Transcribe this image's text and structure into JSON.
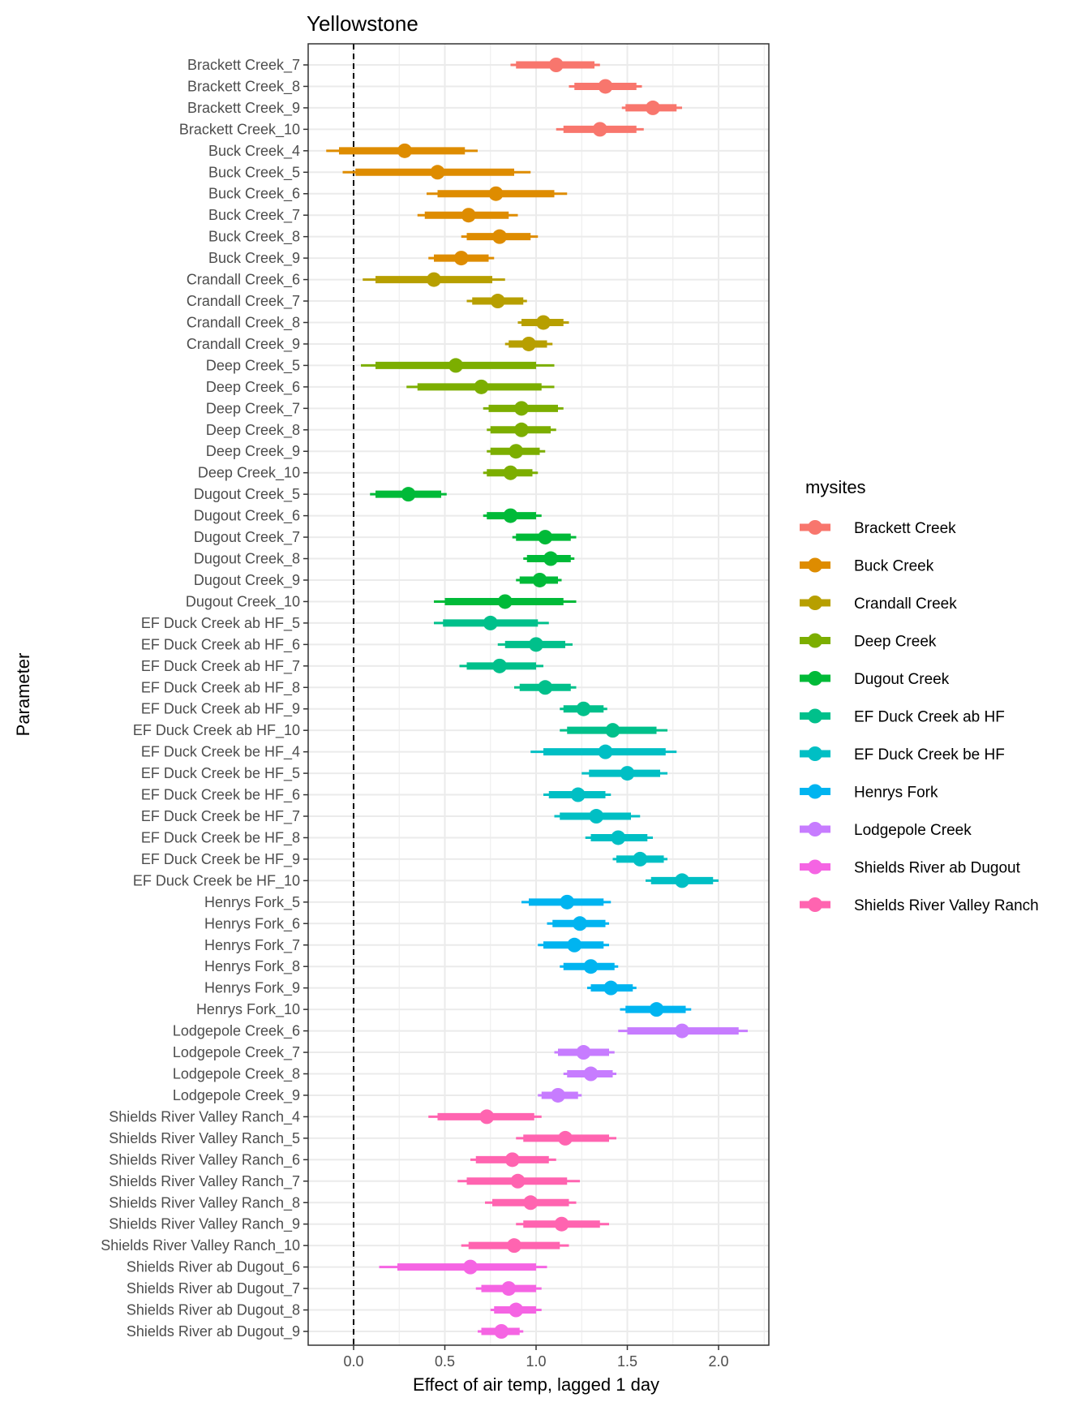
{
  "chart_data": {
    "type": "interval",
    "title": "Yellowstone",
    "xlabel": "Effect of air temp, lagged 1 day",
    "ylabel": "Parameter",
    "xlim": [
      -0.25,
      2.28
    ],
    "x_ticks": [
      0.0,
      0.5,
      1.0,
      1.5,
      2.0
    ],
    "x_tick_labels": [
      "0.0",
      "0.5",
      "1.0",
      "1.5",
      "2.0"
    ],
    "reference_line": 0.0,
    "grid": true,
    "legend": {
      "title": "mysites",
      "position": "right",
      "entries": [
        {
          "name": "Brackett Creek",
          "color": "#F8766D"
        },
        {
          "name": "Buck Creek",
          "color": "#DE8C00"
        },
        {
          "name": "Crandall Creek",
          "color": "#B79F00"
        },
        {
          "name": "Deep Creek",
          "color": "#7CAE00"
        },
        {
          "name": "Dugout Creek",
          "color": "#00BA38"
        },
        {
          "name": "EF Duck Creek ab HF",
          "color": "#00C08B"
        },
        {
          "name": "EF Duck Creek be HF",
          "color": "#00BFC4"
        },
        {
          "name": "Henrys Fork",
          "color": "#00B4F0"
        },
        {
          "name": "Lodgepole Creek",
          "color": "#C77CFF"
        },
        {
          "name": "Shields River ab Dugout",
          "color": "#F564E3"
        },
        {
          "name": "Shields River Valley Ranch",
          "color": "#FF64B0"
        }
      ]
    },
    "rows": [
      {
        "label": "Brackett Creek_7",
        "site": 0,
        "est": 1.11,
        "inner": [
          0.89,
          1.32
        ],
        "outer": [
          0.86,
          1.35
        ]
      },
      {
        "label": "Brackett Creek_8",
        "site": 0,
        "est": 1.38,
        "inner": [
          1.21,
          1.55
        ],
        "outer": [
          1.18,
          1.58
        ]
      },
      {
        "label": "Brackett Creek_9",
        "site": 0,
        "est": 1.64,
        "inner": [
          1.49,
          1.77
        ],
        "outer": [
          1.47,
          1.8
        ]
      },
      {
        "label": "Brackett Creek_10",
        "site": 0,
        "est": 1.35,
        "inner": [
          1.15,
          1.55
        ],
        "outer": [
          1.11,
          1.59
        ]
      },
      {
        "label": "Buck Creek_4",
        "site": 1,
        "est": 0.28,
        "inner": [
          -0.08,
          0.61
        ],
        "outer": [
          -0.15,
          0.68
        ]
      },
      {
        "label": "Buck Creek_5",
        "site": 1,
        "est": 0.46,
        "inner": [
          0.01,
          0.88
        ],
        "outer": [
          -0.06,
          0.97
        ]
      },
      {
        "label": "Buck Creek_6",
        "site": 1,
        "est": 0.78,
        "inner": [
          0.46,
          1.1
        ],
        "outer": [
          0.4,
          1.17
        ]
      },
      {
        "label": "Buck Creek_7",
        "site": 1,
        "est": 0.63,
        "inner": [
          0.39,
          0.85
        ],
        "outer": [
          0.35,
          0.9
        ]
      },
      {
        "label": "Buck Creek_8",
        "site": 1,
        "est": 0.8,
        "inner": [
          0.62,
          0.97
        ],
        "outer": [
          0.59,
          1.01
        ]
      },
      {
        "label": "Buck Creek_9",
        "site": 1,
        "est": 0.59,
        "inner": [
          0.44,
          0.74
        ],
        "outer": [
          0.41,
          0.77
        ]
      },
      {
        "label": "Crandall Creek_6",
        "site": 2,
        "est": 0.44,
        "inner": [
          0.12,
          0.76
        ],
        "outer": [
          0.05,
          0.83
        ]
      },
      {
        "label": "Crandall Creek_7",
        "site": 2,
        "est": 0.79,
        "inner": [
          0.65,
          0.93
        ],
        "outer": [
          0.62,
          0.95
        ]
      },
      {
        "label": "Crandall Creek_8",
        "site": 2,
        "est": 1.04,
        "inner": [
          0.92,
          1.15
        ],
        "outer": [
          0.9,
          1.18
        ]
      },
      {
        "label": "Crandall Creek_9",
        "site": 2,
        "est": 0.96,
        "inner": [
          0.85,
          1.06
        ],
        "outer": [
          0.83,
          1.09
        ]
      },
      {
        "label": "Deep Creek_5",
        "site": 3,
        "est": 0.56,
        "inner": [
          0.12,
          1.0
        ],
        "outer": [
          0.04,
          1.1
        ]
      },
      {
        "label": "Deep Creek_6",
        "site": 3,
        "est": 0.7,
        "inner": [
          0.35,
          1.03
        ],
        "outer": [
          0.29,
          1.1
        ]
      },
      {
        "label": "Deep Creek_7",
        "site": 3,
        "est": 0.92,
        "inner": [
          0.74,
          1.12
        ],
        "outer": [
          0.71,
          1.15
        ]
      },
      {
        "label": "Deep Creek_8",
        "site": 3,
        "est": 0.92,
        "inner": [
          0.75,
          1.08
        ],
        "outer": [
          0.73,
          1.11
        ]
      },
      {
        "label": "Deep Creek_9",
        "site": 3,
        "est": 0.89,
        "inner": [
          0.75,
          1.02
        ],
        "outer": [
          0.73,
          1.05
        ]
      },
      {
        "label": "Deep Creek_10",
        "site": 3,
        "est": 0.86,
        "inner": [
          0.73,
          0.98
        ],
        "outer": [
          0.71,
          1.01
        ]
      },
      {
        "label": "Dugout Creek_5",
        "site": 4,
        "est": 0.3,
        "inner": [
          0.12,
          0.48
        ],
        "outer": [
          0.09,
          0.51
        ]
      },
      {
        "label": "Dugout Creek_6",
        "site": 4,
        "est": 0.86,
        "inner": [
          0.73,
          1.0
        ],
        "outer": [
          0.71,
          1.03
        ]
      },
      {
        "label": "Dugout Creek_7",
        "site": 4,
        "est": 1.05,
        "inner": [
          0.89,
          1.19
        ],
        "outer": [
          0.87,
          1.22
        ]
      },
      {
        "label": "Dugout Creek_8",
        "site": 4,
        "est": 1.08,
        "inner": [
          0.95,
          1.19
        ],
        "outer": [
          0.93,
          1.21
        ]
      },
      {
        "label": "Dugout Creek_9",
        "site": 4,
        "est": 1.02,
        "inner": [
          0.91,
          1.12
        ],
        "outer": [
          0.89,
          1.14
        ]
      },
      {
        "label": "Dugout Creek_10",
        "site": 4,
        "est": 0.83,
        "inner": [
          0.5,
          1.15
        ],
        "outer": [
          0.44,
          1.22
        ]
      },
      {
        "label": "EF Duck Creek ab HF_5",
        "site": 5,
        "est": 0.75,
        "inner": [
          0.49,
          1.01
        ],
        "outer": [
          0.44,
          1.07
        ]
      },
      {
        "label": "EF Duck Creek ab HF_6",
        "site": 5,
        "est": 1.0,
        "inner": [
          0.83,
          1.16
        ],
        "outer": [
          0.79,
          1.2
        ]
      },
      {
        "label": "EF Duck Creek ab HF_7",
        "site": 5,
        "est": 0.8,
        "inner": [
          0.62,
          1.0
        ],
        "outer": [
          0.58,
          1.04
        ]
      },
      {
        "label": "EF Duck Creek ab HF_8",
        "site": 5,
        "est": 1.05,
        "inner": [
          0.91,
          1.19
        ],
        "outer": [
          0.88,
          1.22
        ]
      },
      {
        "label": "EF Duck Creek ab HF_9",
        "site": 5,
        "est": 1.26,
        "inner": [
          1.15,
          1.37
        ],
        "outer": [
          1.13,
          1.39
        ]
      },
      {
        "label": "EF Duck Creek ab HF_10",
        "site": 5,
        "est": 1.42,
        "inner": [
          1.17,
          1.66
        ],
        "outer": [
          1.13,
          1.72
        ]
      },
      {
        "label": "EF Duck Creek be HF_4",
        "site": 6,
        "est": 1.38,
        "inner": [
          1.04,
          1.71
        ],
        "outer": [
          0.97,
          1.77
        ]
      },
      {
        "label": "EF Duck Creek be HF_5",
        "site": 6,
        "est": 1.5,
        "inner": [
          1.29,
          1.68
        ],
        "outer": [
          1.25,
          1.72
        ]
      },
      {
        "label": "EF Duck Creek be HF_6",
        "site": 6,
        "est": 1.23,
        "inner": [
          1.07,
          1.38
        ],
        "outer": [
          1.04,
          1.41
        ]
      },
      {
        "label": "EF Duck Creek be HF_7",
        "site": 6,
        "est": 1.33,
        "inner": [
          1.13,
          1.52
        ],
        "outer": [
          1.1,
          1.57
        ]
      },
      {
        "label": "EF Duck Creek be HF_8",
        "site": 6,
        "est": 1.45,
        "inner": [
          1.3,
          1.61
        ],
        "outer": [
          1.27,
          1.64
        ]
      },
      {
        "label": "EF Duck Creek be HF_9",
        "site": 6,
        "est": 1.57,
        "inner": [
          1.44,
          1.7
        ],
        "outer": [
          1.42,
          1.72
        ]
      },
      {
        "label": "EF Duck Creek be HF_10",
        "site": 6,
        "est": 1.8,
        "inner": [
          1.63,
          1.97
        ],
        "outer": [
          1.6,
          2.0
        ]
      },
      {
        "label": "Henrys Fork_5",
        "site": 7,
        "est": 1.17,
        "inner": [
          0.96,
          1.37
        ],
        "outer": [
          0.92,
          1.41
        ]
      },
      {
        "label": "Henrys Fork_6",
        "site": 7,
        "est": 1.24,
        "inner": [
          1.09,
          1.38
        ],
        "outer": [
          1.06,
          1.4
        ]
      },
      {
        "label": "Henrys Fork_7",
        "site": 7,
        "est": 1.21,
        "inner": [
          1.04,
          1.37
        ],
        "outer": [
          1.01,
          1.4
        ]
      },
      {
        "label": "Henrys Fork_8",
        "site": 7,
        "est": 1.3,
        "inner": [
          1.15,
          1.43
        ],
        "outer": [
          1.13,
          1.45
        ]
      },
      {
        "label": "Henrys Fork_9",
        "site": 7,
        "est": 1.41,
        "inner": [
          1.3,
          1.53
        ],
        "outer": [
          1.28,
          1.55
        ]
      },
      {
        "label": "Henrys Fork_10",
        "site": 7,
        "est": 1.66,
        "inner": [
          1.49,
          1.82
        ],
        "outer": [
          1.46,
          1.85
        ]
      },
      {
        "label": "Lodgepole Creek_6",
        "site": 8,
        "est": 1.8,
        "inner": [
          1.5,
          2.11
        ],
        "outer": [
          1.45,
          2.16
        ]
      },
      {
        "label": "Lodgepole Creek_7",
        "site": 8,
        "est": 1.26,
        "inner": [
          1.12,
          1.4
        ],
        "outer": [
          1.1,
          1.43
        ]
      },
      {
        "label": "Lodgepole Creek_8",
        "site": 8,
        "est": 1.3,
        "inner": [
          1.17,
          1.42
        ],
        "outer": [
          1.15,
          1.44
        ]
      },
      {
        "label": "Lodgepole Creek_9",
        "site": 8,
        "est": 1.12,
        "inner": [
          1.03,
          1.23
        ],
        "outer": [
          1.01,
          1.25
        ]
      },
      {
        "label": "Shields River Valley Ranch_4",
        "site": 10,
        "est": 0.73,
        "inner": [
          0.46,
          0.99
        ],
        "outer": [
          0.41,
          1.03
        ]
      },
      {
        "label": "Shields River Valley Ranch_5",
        "site": 10,
        "est": 1.16,
        "inner": [
          0.93,
          1.4
        ],
        "outer": [
          0.89,
          1.44
        ]
      },
      {
        "label": "Shields River Valley Ranch_6",
        "site": 10,
        "est": 0.87,
        "inner": [
          0.67,
          1.07
        ],
        "outer": [
          0.64,
          1.11
        ]
      },
      {
        "label": "Shields River Valley Ranch_7",
        "site": 10,
        "est": 0.9,
        "inner": [
          0.62,
          1.17
        ],
        "outer": [
          0.57,
          1.24
        ]
      },
      {
        "label": "Shields River Valley Ranch_8",
        "site": 10,
        "est": 0.97,
        "inner": [
          0.76,
          1.18
        ],
        "outer": [
          0.72,
          1.22
        ]
      },
      {
        "label": "Shields River Valley Ranch_9",
        "site": 10,
        "est": 1.14,
        "inner": [
          0.93,
          1.35
        ],
        "outer": [
          0.89,
          1.4
        ]
      },
      {
        "label": "Shields River Valley Ranch_10",
        "site": 10,
        "est": 0.88,
        "inner": [
          0.63,
          1.13
        ],
        "outer": [
          0.59,
          1.18
        ]
      },
      {
        "label": "Shields River ab Dugout_6",
        "site": 9,
        "est": 0.64,
        "inner": [
          0.24,
          1.0
        ],
        "outer": [
          0.14,
          1.06
        ]
      },
      {
        "label": "Shields River ab Dugout_7",
        "site": 9,
        "est": 0.85,
        "inner": [
          0.7,
          1.0
        ],
        "outer": [
          0.67,
          1.03
        ]
      },
      {
        "label": "Shields River ab Dugout_8",
        "site": 9,
        "est": 0.89,
        "inner": [
          0.77,
          1.0
        ],
        "outer": [
          0.75,
          1.03
        ]
      },
      {
        "label": "Shields River ab Dugout_9",
        "site": 9,
        "est": 0.81,
        "inner": [
          0.7,
          0.91
        ],
        "outer": [
          0.68,
          0.93
        ]
      }
    ]
  }
}
